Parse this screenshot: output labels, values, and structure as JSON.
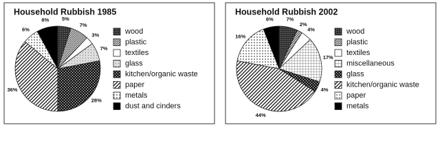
{
  "chart_data": [
    {
      "type": "pie",
      "title": "Household Rubbish 1985",
      "categories": [
        "wood",
        "plastic",
        "textiles",
        "glass",
        "kitchen/organic waste",
        "paper",
        "metals",
        "dust and cinders"
      ],
      "values": [
        5,
        7,
        3,
        7,
        28,
        36,
        6,
        8
      ],
      "value_labels": [
        "5%",
        "7%",
        "3%",
        "7%",
        "28%",
        "36%",
        "6%",
        "8%"
      ]
    },
    {
      "type": "pie",
      "title": "Household Rubbish 2002",
      "categories": [
        "wood",
        "plastic",
        "textiles",
        "miscellaneous",
        "glass",
        "kitchen/organic waste",
        "paper",
        "metals"
      ],
      "values": [
        7,
        2,
        4,
        17,
        4,
        44,
        16,
        6
      ],
      "value_labels": [
        "7%",
        "2%",
        "4%",
        "17%",
        "4%",
        "44%",
        "16%",
        "6%"
      ]
    }
  ]
}
